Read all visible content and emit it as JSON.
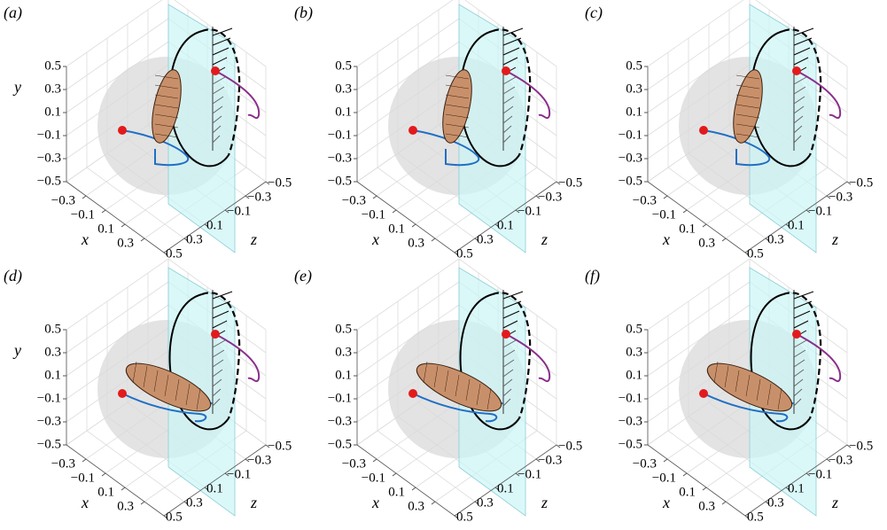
{
  "chart_data": [
    {
      "type": "3d",
      "panel": "(a)",
      "xlabel": "x",
      "ylabel": "y",
      "zlabel": "z",
      "tilt": false,
      "xlim": [
        -0.5,
        0.5
      ],
      "ylim": [
        -0.5,
        0.5
      ],
      "zlim": [
        -0.5,
        0.5
      ],
      "xticks": [
        {
          "value": -0.3,
          "label": "−0.3"
        },
        {
          "value": -0.1,
          "label": "−0.1"
        },
        0.1,
        0.3
      ],
      "yticks": [
        {
          "value": -0.5,
          "label": "−0.5"
        },
        {
          "value": -0.3,
          "label": "−0.3"
        },
        {
          "value": -0.1,
          "label": "−0.1"
        },
        0.1,
        0.3,
        0.5
      ],
      "zticks": [
        {
          "value": -0.5,
          "label": "−0.5"
        },
        {
          "value": -0.3,
          "label": "−0.3"
        },
        {
          "value": -0.1,
          "label": "−0.1"
        },
        0.1,
        0.3,
        0.5
      ]
    },
    {
      "type": "3d",
      "panel": "(b)",
      "xlabel": "x",
      "zlabel": "z",
      "tilt": false,
      "xlim": [
        -0.5,
        0.5
      ],
      "ylim": [
        -0.5,
        0.5
      ],
      "zlim": [
        -0.5,
        0.5
      ],
      "xticks": [
        {
          "value": -0.3,
          "label": "−0.3"
        },
        {
          "value": -0.1,
          "label": "−0.1"
        },
        0.1,
        0.3
      ],
      "yticks": [
        {
          "value": -0.5,
          "label": "−0.5"
        },
        {
          "value": -0.3,
          "label": "−0.3"
        },
        {
          "value": -0.1,
          "label": "−0.1"
        },
        0.1,
        0.3,
        0.5
      ],
      "zticks": [
        {
          "value": -0.5,
          "label": "−0.5"
        },
        {
          "value": -0.3,
          "label": "−0.3"
        },
        {
          "value": -0.1,
          "label": "−0.1"
        },
        0.1,
        0.3,
        0.5
      ]
    },
    {
      "type": "3d",
      "panel": "(c)",
      "xlabel": "x",
      "zlabel": "z",
      "tilt": false,
      "xlim": [
        -0.5,
        0.5
      ],
      "ylim": [
        -0.5,
        0.5
      ],
      "zlim": [
        -0.5,
        0.5
      ],
      "xticks": [
        {
          "value": -0.3,
          "label": "−0.3"
        },
        {
          "value": -0.1,
          "label": "−0.1"
        },
        0.1,
        0.3
      ],
      "yticks": [
        {
          "value": -0.5,
          "label": "−0.5"
        },
        {
          "value": -0.3,
          "label": "−0.3"
        },
        {
          "value": -0.1,
          "label": "−0.1"
        },
        0.1,
        0.3,
        0.5
      ],
      "zticks": [
        {
          "value": -0.5,
          "label": "−0.5"
        },
        {
          "value": -0.3,
          "label": "−0.3"
        },
        {
          "value": -0.1,
          "label": "−0.1"
        },
        0.1,
        0.3,
        0.5
      ]
    },
    {
      "type": "3d",
      "panel": "(d)",
      "xlabel": "x",
      "ylabel": "y",
      "zlabel": "z",
      "tilt": true,
      "xlim": [
        -0.5,
        0.5
      ],
      "ylim": [
        -0.5,
        0.5
      ],
      "zlim": [
        -0.5,
        0.5
      ],
      "xticks": [
        {
          "value": -0.3,
          "label": "−0.3"
        },
        {
          "value": -0.1,
          "label": "−0.1"
        },
        0.1,
        0.3
      ],
      "yticks": [
        {
          "value": -0.5,
          "label": "−0.5"
        },
        {
          "value": -0.3,
          "label": "−0.3"
        },
        {
          "value": -0.1,
          "label": "−0.1"
        },
        0.1,
        0.3,
        0.5
      ],
      "zticks": [
        {
          "value": -0.5,
          "label": "−0.5"
        },
        {
          "value": -0.3,
          "label": "−0.3"
        },
        {
          "value": -0.1,
          "label": "−0.1"
        },
        0.1,
        0.3,
        0.5
      ]
    },
    {
      "type": "3d",
      "panel": "(e)",
      "xlabel": "x",
      "zlabel": "z",
      "tilt": true,
      "xlim": [
        -0.5,
        0.5
      ],
      "ylim": [
        -0.5,
        0.5
      ],
      "zlim": [
        -0.5,
        0.5
      ],
      "xticks": [
        {
          "value": -0.3,
          "label": "−0.3"
        },
        {
          "value": -0.1,
          "label": "−0.1"
        },
        0.1,
        0.3
      ],
      "yticks": [
        {
          "value": -0.5,
          "label": "−0.5"
        },
        {
          "value": -0.3,
          "label": "−0.3"
        },
        {
          "value": -0.1,
          "label": "−0.1"
        },
        0.1,
        0.3,
        0.5
      ],
      "zticks": [
        {
          "value": -0.5,
          "label": "−0.5"
        },
        {
          "value": -0.3,
          "label": "−0.3"
        },
        {
          "value": -0.1,
          "label": "−0.1"
        },
        0.1,
        0.3,
        0.5
      ]
    },
    {
      "type": "3d",
      "panel": "(f)",
      "xlabel": "x",
      "zlabel": "z",
      "tilt": true,
      "xlim": [
        -0.5,
        0.5
      ],
      "ylim": [
        -0.5,
        0.5
      ],
      "zlim": [
        -0.5,
        0.5
      ],
      "xticks": [
        {
          "value": -0.3,
          "label": "−0.3"
        },
        {
          "value": -0.1,
          "label": "−0.1"
        },
        0.1,
        0.3
      ],
      "yticks": [
        {
          "value": -0.5,
          "label": "−0.5"
        },
        {
          "value": -0.3,
          "label": "−0.3"
        },
        {
          "value": -0.1,
          "label": "−0.1"
        },
        0.1,
        0.3,
        0.5
      ],
      "zticks": [
        {
          "value": -0.5,
          "label": "−0.5"
        },
        {
          "value": -0.3,
          "label": "−0.3"
        },
        {
          "value": -0.1,
          "label": "−0.1"
        },
        0.1,
        0.3,
        0.5
      ]
    }
  ]
}
